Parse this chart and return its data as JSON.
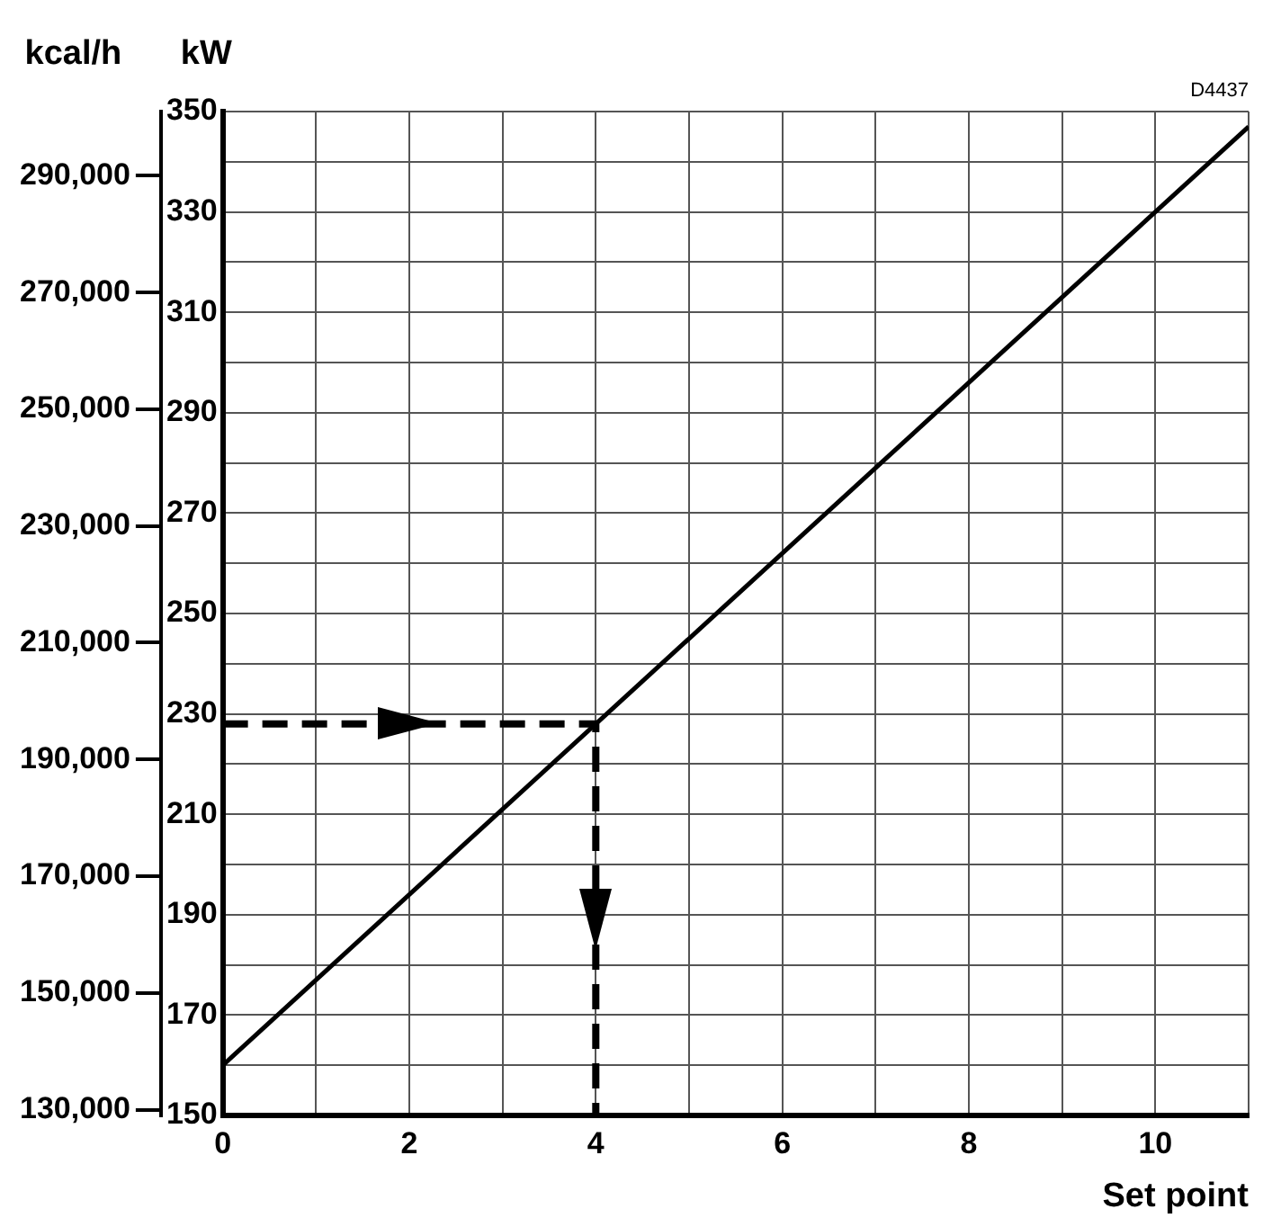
{
  "chart_data": {
    "type": "line",
    "xlabel": "Set point",
    "ylabel": "kW",
    "y2label": "kcal/h",
    "annotations": [
      "D4437"
    ],
    "series": [
      {
        "x": [
          0,
          11
        ],
        "values": [
          160,
          347
        ],
        "color": "#000000",
        "line_style": "solid"
      },
      {
        "x": [
          0,
          4,
          4
        ],
        "values": [
          228,
          228,
          150
        ],
        "color": "#000000",
        "line_style": "dashed"
      }
    ],
    "xlim": [
      0,
      11
    ],
    "xticks": [
      0,
      {
        "value": 1,
        "label": null
      },
      2,
      {
        "value": 3,
        "label": null
      },
      4,
      {
        "value": 5,
        "label": null
      },
      6,
      {
        "value": 7,
        "label": null
      },
      8,
      {
        "value": 9,
        "label": null
      },
      10,
      {
        "value": 11,
        "label": null
      }
    ],
    "ylim": [
      150,
      350
    ],
    "yticks": [
      150,
      {
        "value": 160,
        "label": null
      },
      170,
      {
        "value": 180,
        "label": null
      },
      190,
      {
        "value": 200,
        "label": null
      },
      210,
      {
        "value": 220,
        "label": null
      },
      230,
      {
        "value": 240,
        "label": null
      },
      250,
      {
        "value": 260,
        "label": null
      },
      270,
      {
        "value": 280,
        "label": null
      },
      290,
      {
        "value": 300,
        "label": null
      },
      310,
      {
        "value": 320,
        "label": null
      },
      330,
      {
        "value": 340,
        "label": null
      },
      350
    ],
    "y2lim": [
      129000,
      301000
    ],
    "y2ticks": [
      {
        "value": 130000,
        "label": "130,000"
      },
      {
        "value": 150000,
        "label": "150,000"
      },
      {
        "value": 170000,
        "label": "170,000"
      },
      {
        "value": 190000,
        "label": "190,000"
      },
      {
        "value": 210000,
        "label": "210,000"
      },
      {
        "value": 230000,
        "label": "230,000"
      },
      {
        "value": 250000,
        "label": "250,000"
      },
      {
        "value": 270000,
        "label": "270,000"
      },
      {
        "value": 290000,
        "label": "290,000"
      }
    ],
    "grid": true,
    "legend": false,
    "marker": "none"
  }
}
